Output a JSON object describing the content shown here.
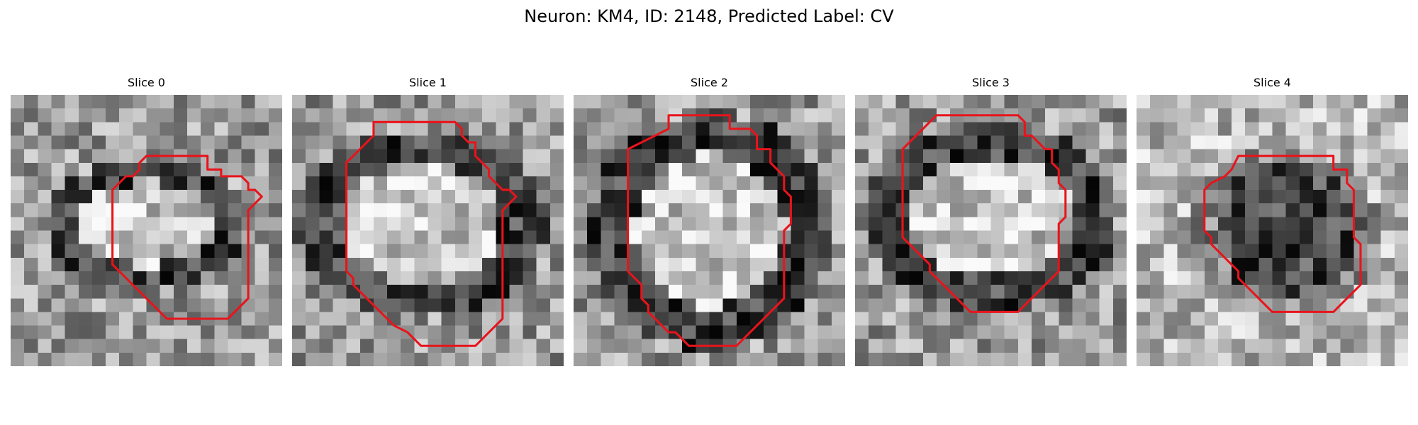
{
  "figure": {
    "title": "Neuron: KM4, ID: 2148, Predicted Label: CV",
    "contour_color": "#e8141c"
  },
  "slices": [
    {
      "title": "Slice 0",
      "blob": "bright",
      "contour": [
        [
          10.5,
          4.5
        ],
        [
          14.5,
          4.5
        ],
        [
          14.5,
          5.5
        ],
        [
          15.5,
          5.5
        ],
        [
          15.5,
          6
        ],
        [
          17,
          6
        ],
        [
          17.5,
          6.5
        ],
        [
          17.5,
          7
        ],
        [
          18,
          7
        ],
        [
          18.5,
          7.5
        ],
        [
          18,
          8
        ],
        [
          17.5,
          8.5
        ],
        [
          17.5,
          15
        ],
        [
          16,
          16.5
        ],
        [
          13.5,
          16.5
        ],
        [
          11.5,
          16.5
        ],
        [
          10.5,
          15.5
        ],
        [
          9.5,
          14.5
        ],
        [
          8.5,
          13.5
        ],
        [
          8,
          13
        ],
        [
          7.5,
          12.5
        ],
        [
          7.5,
          7
        ],
        [
          8,
          6.5
        ],
        [
          8.5,
          6
        ],
        [
          9,
          6
        ],
        [
          9.5,
          5.5
        ],
        [
          9.5,
          5
        ],
        [
          10,
          4.5
        ]
      ]
    },
    {
      "title": "Slice 1",
      "blob": "bright",
      "contour": [
        [
          6,
          2
        ],
        [
          12,
          2
        ],
        [
          12.5,
          2.5
        ],
        [
          12.5,
          3
        ],
        [
          13,
          3.5
        ],
        [
          13.5,
          3.5
        ],
        [
          13.5,
          4.5
        ],
        [
          14,
          5
        ],
        [
          14.5,
          5.5
        ],
        [
          14.5,
          6
        ],
        [
          15,
          6.5
        ],
        [
          15.5,
          7
        ],
        [
          16,
          7
        ],
        [
          16.5,
          7.5
        ],
        [
          16,
          8
        ],
        [
          15.5,
          8.5
        ],
        [
          15.5,
          16.5
        ],
        [
          13.5,
          18.5
        ],
        [
          9.5,
          18.5
        ],
        [
          8.5,
          17.5
        ],
        [
          7.5,
          17
        ],
        [
          7,
          16.5
        ],
        [
          5,
          14.5
        ],
        [
          4.5,
          14
        ],
        [
          4.5,
          13.5
        ],
        [
          4,
          13
        ],
        [
          4,
          5
        ],
        [
          5,
          4
        ],
        [
          6,
          3
        ]
      ]
    },
    {
      "title": "Slice 2",
      "blob": "bright",
      "contour": [
        [
          7,
          1.5
        ],
        [
          11.5,
          1.5
        ],
        [
          11.5,
          2.5
        ],
        [
          13,
          2.5
        ],
        [
          13.5,
          3
        ],
        [
          13.5,
          4
        ],
        [
          14.5,
          4
        ],
        [
          14.5,
          5
        ],
        [
          15.5,
          6
        ],
        [
          15.5,
          7
        ],
        [
          16,
          7.5
        ],
        [
          16,
          9.5
        ],
        [
          15.5,
          10
        ],
        [
          15.5,
          15
        ],
        [
          14.5,
          16
        ],
        [
          13.5,
          17
        ],
        [
          12.5,
          18
        ],
        [
          12,
          18.5
        ],
        [
          11.5,
          18.5
        ],
        [
          11,
          18.5
        ],
        [
          10.5,
          18.5
        ],
        [
          8.5,
          18.5
        ],
        [
          7.5,
          17.5
        ],
        [
          7,
          17.5
        ],
        [
          6,
          16.5
        ],
        [
          5.5,
          16
        ],
        [
          5.5,
          15.5
        ],
        [
          5,
          15
        ],
        [
          5,
          14
        ],
        [
          4.5,
          13.5
        ],
        [
          4,
          13
        ],
        [
          4,
          4
        ],
        [
          5,
          3.5
        ],
        [
          6,
          3
        ],
        [
          7,
          2.5
        ]
      ]
    },
    {
      "title": "Slice 3",
      "blob": "bright",
      "contour": [
        [
          6,
          1.5
        ],
        [
          12,
          1.5
        ],
        [
          12.5,
          2
        ],
        [
          12.5,
          3
        ],
        [
          13,
          3
        ],
        [
          13.5,
          3.5
        ],
        [
          14,
          4
        ],
        [
          14.5,
          4
        ],
        [
          14.5,
          5
        ],
        [
          15,
          5.5
        ],
        [
          15,
          6.5
        ],
        [
          15.5,
          7
        ],
        [
          15.5,
          9
        ],
        [
          15,
          9.5
        ],
        [
          15,
          13
        ],
        [
          14,
          14
        ],
        [
          13.5,
          14.5
        ],
        [
          13,
          15
        ],
        [
          12.5,
          15.5
        ],
        [
          12,
          16
        ],
        [
          8.5,
          16
        ],
        [
          6.5,
          14
        ],
        [
          6,
          13.5
        ],
        [
          5.5,
          13
        ],
        [
          5.5,
          12.5
        ],
        [
          4,
          11
        ],
        [
          3.5,
          10.5
        ],
        [
          3.5,
          4
        ],
        [
          5,
          2.5
        ]
      ]
    },
    {
      "title": "Slice 4",
      "blob": "dark",
      "contour": [
        [
          7.5,
          4.5
        ],
        [
          14.5,
          4.5
        ],
        [
          14.5,
          5.5
        ],
        [
          15.5,
          5.5
        ],
        [
          15.5,
          6.5
        ],
        [
          16,
          7
        ],
        [
          16,
          10.5
        ],
        [
          16.5,
          11
        ],
        [
          16.5,
          14
        ],
        [
          15,
          15.5
        ],
        [
          14.5,
          16
        ],
        [
          13.5,
          16
        ],
        [
          10,
          16
        ],
        [
          8.5,
          14.5
        ],
        [
          7.5,
          13.5
        ],
        [
          7.5,
          13
        ],
        [
          6.5,
          12
        ],
        [
          5.5,
          11
        ],
        [
          5.5,
          10.5
        ],
        [
          5,
          10
        ],
        [
          5,
          7
        ],
        [
          5.5,
          6.5
        ],
        [
          6.5,
          6
        ],
        [
          7,
          5.5
        ]
      ]
    }
  ]
}
